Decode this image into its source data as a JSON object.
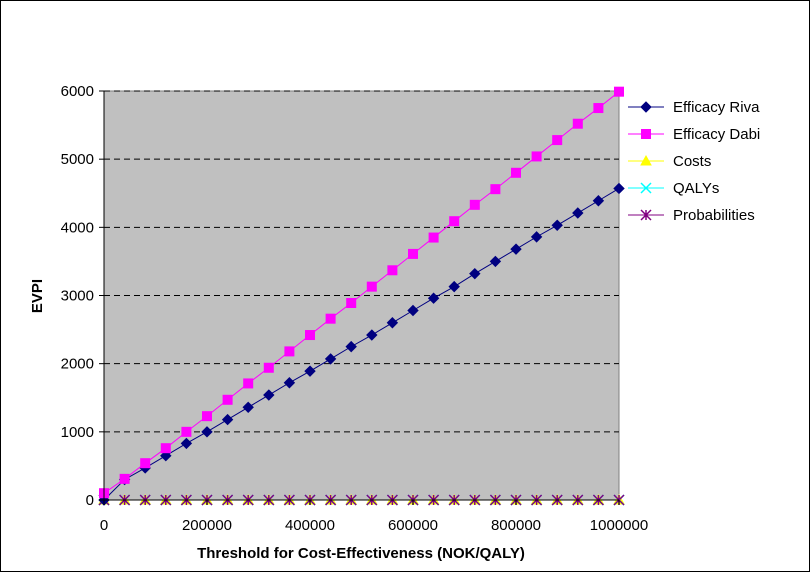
{
  "chart_data": {
    "type": "line",
    "xlabel": "Threshold for Cost-Effectiveness (NOK/QALY)",
    "ylabel": "EVPI",
    "xlim": [
      0,
      1000000
    ],
    "ylim": [
      0,
      6000
    ],
    "x_ticks": [
      "0",
      "200000",
      "400000",
      "600000",
      "800000",
      "1000000"
    ],
    "y_ticks": [
      "0",
      "1000",
      "2000",
      "3000",
      "4000",
      "5000",
      "6000"
    ],
    "grid": "horizontal dashed",
    "legend_position": "right",
    "plot_background": "#C0C0C0",
    "x": [
      0,
      40000,
      80000,
      120000,
      160000,
      200000,
      240000,
      280000,
      320000,
      360000,
      400000,
      440000,
      480000,
      520000,
      560000,
      600000,
      640000,
      680000,
      720000,
      760000,
      800000,
      840000,
      880000,
      920000,
      960000,
      1000000
    ],
    "series": [
      {
        "name": "Efficacy Riva",
        "color": "#000080",
        "marker": "diamond",
        "values": [
          0,
          300,
          470,
          650,
          830,
          1000,
          1180,
          1360,
          1540,
          1720,
          1890,
          2070,
          2250,
          2420,
          2600,
          2780,
          2960,
          3130,
          3320,
          3500,
          3680,
          3860,
          4030,
          4210,
          4390,
          4570
        ]
      },
      {
        "name": "Efficacy Dabi",
        "color": "#FF00FF",
        "marker": "square",
        "values": [
          100,
          310,
          540,
          760,
          1000,
          1230,
          1470,
          1710,
          1940,
          2180,
          2420,
          2660,
          2890,
          3130,
          3370,
          3610,
          3850,
          4090,
          4330,
          4560,
          4800,
          5040,
          5280,
          5520,
          5750,
          5990
        ]
      },
      {
        "name": "Costs",
        "color": "#FFFF00",
        "marker": "triangle",
        "values": [
          0,
          0,
          0,
          0,
          0,
          0,
          0,
          0,
          0,
          0,
          0,
          0,
          0,
          0,
          0,
          0,
          0,
          0,
          0,
          0,
          0,
          0,
          0,
          0,
          0,
          0
        ]
      },
      {
        "name": "QALYs",
        "color": "#00FFFF",
        "marker": "x",
        "values": [
          0,
          0,
          0,
          0,
          0,
          0,
          0,
          0,
          0,
          0,
          0,
          0,
          0,
          0,
          0,
          0,
          0,
          0,
          0,
          0,
          0,
          0,
          0,
          0,
          0,
          0
        ]
      },
      {
        "name": "Probabilities",
        "color": "#800080",
        "marker": "star",
        "values": [
          0,
          0,
          0,
          0,
          0,
          0,
          0,
          0,
          0,
          0,
          0,
          0,
          0,
          0,
          0,
          0,
          0,
          0,
          0,
          0,
          0,
          0,
          0,
          0,
          0,
          0
        ]
      }
    ]
  }
}
